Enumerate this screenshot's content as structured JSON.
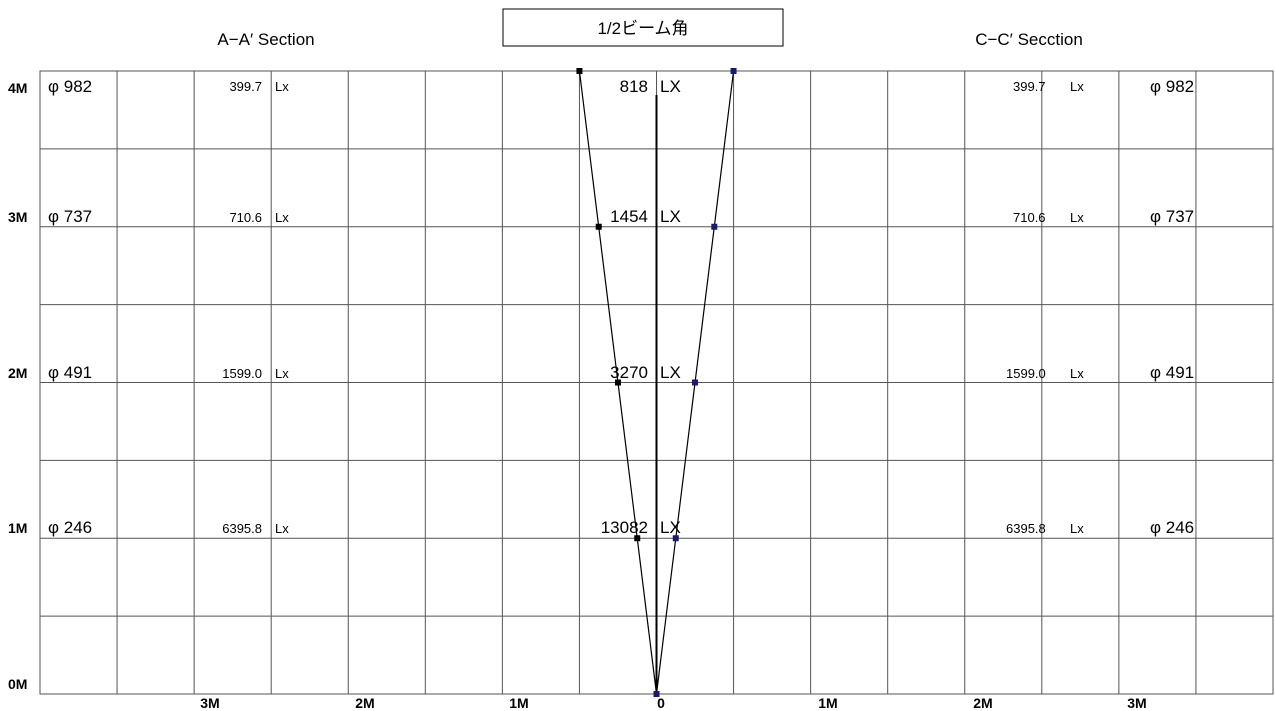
{
  "header": {
    "left_title": "A−A′ Section",
    "center_title": "1/2ビーム角",
    "right_title": "C−C′ Secction"
  },
  "y_axis": {
    "labels": [
      "4M",
      "3M",
      "2M",
      "1M",
      "0M"
    ]
  },
  "x_axis": {
    "labels": [
      "3M",
      "2M",
      "1M",
      "0",
      "1M",
      "2M",
      "3M"
    ]
  },
  "rows": [
    {
      "height_m": 4,
      "diameter": "φ 982",
      "section_lux": "399.7",
      "section_unit": "Lx",
      "center_lux": "818",
      "center_unit": "LX",
      "half_width_m": 0.5
    },
    {
      "height_m": 3,
      "diameter": "φ 737",
      "section_lux": "710.6",
      "section_unit": "Lx",
      "center_lux": "1454",
      "center_unit": "LX",
      "half_width_m": 0.375
    },
    {
      "height_m": 2,
      "diameter": "φ 491",
      "section_lux": "1599.0",
      "section_unit": "Lx",
      "center_lux": "3270",
      "center_unit": "LX",
      "half_width_m": 0.25
    },
    {
      "height_m": 1,
      "diameter": "φ 246",
      "section_lux": "6395.8",
      "section_unit": "Lx",
      "center_lux": "13082",
      "center_unit": "LX",
      "half_width_m": 0.125
    }
  ],
  "beam": {
    "left_color": "#000000",
    "right_color": "#1a1a6e",
    "marker_left": "#000000",
    "marker_right": "#1a1a6e"
  }
}
